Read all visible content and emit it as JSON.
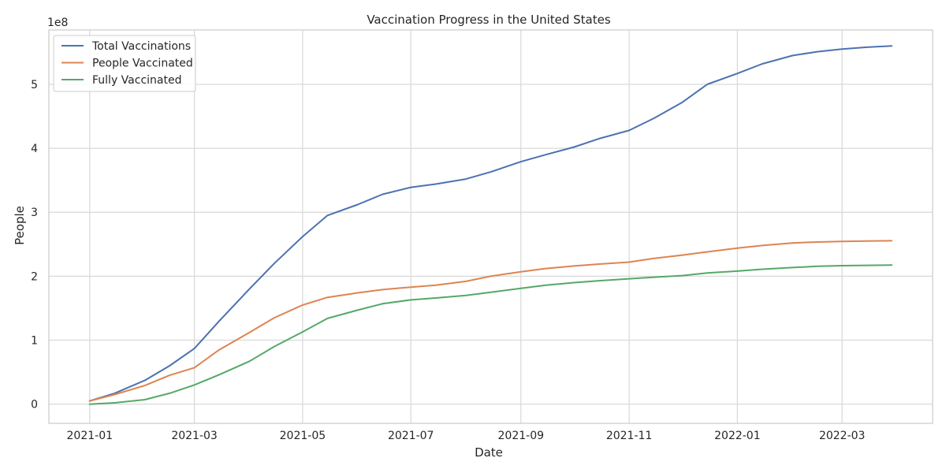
{
  "chart_data": {
    "type": "line",
    "title": "Vaccination Progress in the United States",
    "xlabel": "Date",
    "ylabel": "People",
    "y_offset_label": "1e8",
    "y_scale": 100000000,
    "xlim": [
      "2020-12-09",
      "2022-04-21"
    ],
    "ylim": [
      -30000000,
      585000000
    ],
    "x_ticks": [
      "2021-01",
      "2021-03",
      "2021-05",
      "2021-07",
      "2021-09",
      "2021-11",
      "2022-01",
      "2022-03"
    ],
    "y_ticks": [
      0,
      100000000,
      200000000,
      300000000,
      400000000,
      500000000
    ],
    "y_tick_labels": [
      "0",
      "1",
      "2",
      "3",
      "4",
      "5"
    ],
    "grid": true,
    "legend_position": "top-left",
    "x": [
      "2021-01-01",
      "2021-01-15",
      "2021-02-01",
      "2021-02-15",
      "2021-03-01",
      "2021-03-15",
      "2021-04-01",
      "2021-04-15",
      "2021-05-01",
      "2021-05-15",
      "2021-06-01",
      "2021-06-15",
      "2021-07-01",
      "2021-07-15",
      "2021-08-01",
      "2021-08-15",
      "2021-09-01",
      "2021-09-15",
      "2021-10-01",
      "2021-10-15",
      "2021-11-01",
      "2021-11-15",
      "2021-12-01",
      "2021-12-15",
      "2022-01-01",
      "2022-01-15",
      "2022-02-01",
      "2022-02-15",
      "2022-03-01",
      "2022-03-15",
      "2022-03-29"
    ],
    "series": [
      {
        "name": "Total Vaccinations",
        "color": "#4c72b0",
        "values": [
          5000000,
          17000000,
          37000000,
          60000000,
          87000000,
          130000000,
          180000000,
          220000000,
          262000000,
          295000000,
          312000000,
          328000000,
          339000000,
          344000000,
          352000000,
          363000000,
          379000000,
          390000000,
          402000000,
          415000000,
          428000000,
          447000000,
          472000000,
          500000000,
          517000000,
          532000000,
          545000000,
          551000000,
          555000000,
          558000000,
          560000000
        ]
      },
      {
        "name": "People Vaccinated",
        "color": "#dd8452",
        "values": [
          5000000,
          15000000,
          29000000,
          45000000,
          57000000,
          85000000,
          112000000,
          135000000,
          155000000,
          167000000,
          174000000,
          179000000,
          183000000,
          186000000,
          192000000,
          200000000,
          207000000,
          212000000,
          216000000,
          219000000,
          222000000,
          228000000,
          233000000,
          238000000,
          244000000,
          248000000,
          252000000,
          253500000,
          254500000,
          255000000,
          255500000
        ]
      },
      {
        "name": "Fully Vaccinated",
        "color": "#55a868",
        "values": [
          0,
          2000000,
          7000000,
          17000000,
          30000000,
          46000000,
          67000000,
          90000000,
          113000000,
          134000000,
          147000000,
          157000000,
          163000000,
          166000000,
          170000000,
          175000000,
          181000000,
          186000000,
          190000000,
          193000000,
          196000000,
          198500000,
          201000000,
          205000000,
          208000000,
          211000000,
          213500000,
          215500000,
          216500000,
          217000000,
          217500000
        ]
      }
    ]
  }
}
